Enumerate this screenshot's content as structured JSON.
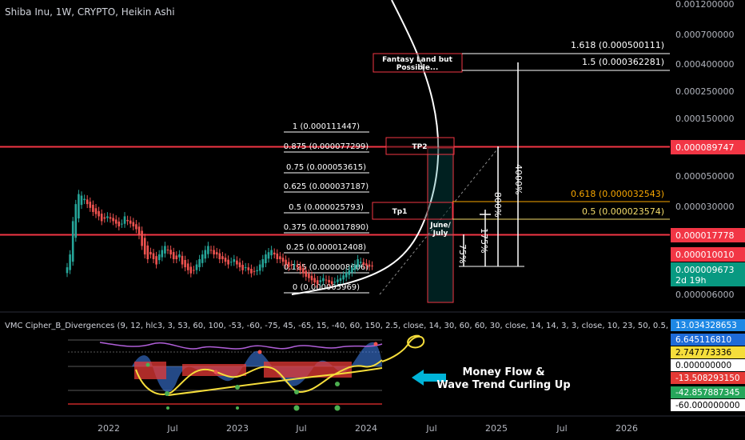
{
  "header": {
    "title": "Shiba Inu, 1W, CRYPTO, Heikin Ashi",
    "indicator": "VMC Cipher_B_Divergences (9, 12, hlc3, 3, 53, 60, 100, -53, -60, -75, 45, -65, 15, -40, 60, 150, 2.5, close, 14, 30, 60, 60, 30, close, 14, 14, 3, 3, close, 10, 23, 50, 0.5, -"
  },
  "colors": {
    "background": "#000000",
    "bull": "#26a69a",
    "bear": "#ef5350",
    "red_line": "#f23645",
    "fib_orange": "#f7a600",
    "fib_yellow": "#f5dd6b",
    "callout": "#00b4d8"
  },
  "annotations": {
    "fantasy_box": "Fantasy Land but\nPossible...",
    "tp2": "TP2",
    "tp1": "Tp1",
    "june_july": "June/\nJuly",
    "pct_4000": "4000%",
    "pct_800": "800%",
    "pct_175": "175%",
    "pct_75": "75%",
    "callout": "Money Flow &\nWave Trend Curling Up"
  },
  "chart_data": {
    "type": "candlestick",
    "title": "Shiba Inu, 1W, CRYPTO, Heikin Ashi",
    "y_scale": "log",
    "y_ticks": [
      "0.001200000",
      "0.000700000",
      "0.000400000",
      "0.000250000",
      "0.000150000",
      "0.000050000",
      "0.000030000",
      "0.000006000"
    ],
    "x_ticks": [
      "2022",
      "Jul",
      "2023",
      "Jul",
      "2024",
      "Jul",
      "2025",
      "Jul",
      "2026"
    ],
    "price_tags": [
      {
        "value": "0.000089747",
        "color": "#f23645"
      },
      {
        "value": "0.000017778",
        "color": "#f23645"
      },
      {
        "value": "0.000010010",
        "color": "#f23645"
      },
      {
        "value": "0.000009673",
        "sub": "2d 19h",
        "color": "#089981"
      }
    ],
    "fib_left": [
      "1 (0.000111447)",
      "0.875 (0.000077299)",
      "0.75 (0.000053615)",
      "0.625 (0.000037187)",
      "0.5 (0.000025793)",
      "0.375 (0.000017890)",
      "0.25 (0.000012408)",
      "0.125 (0.000008606)",
      "0 (0.000005969)"
    ],
    "fib_right_top": [
      "1.618 (0.000500111)",
      "1.5 (0.000362281)"
    ],
    "fib_right_mid": [
      {
        "label": "0.618 (0.000032543)",
        "color": "#f7a600"
      },
      {
        "label": "0.5 (0.000023574)",
        "color": "#f5dd6b"
      }
    ],
    "heikin_ashi_weekly_close": [
      9.5,
      12,
      22,
      30,
      36,
      35,
      33,
      30,
      28,
      26,
      25,
      24,
      22,
      23,
      24,
      23,
      22,
      21,
      20,
      21,
      24,
      22,
      21,
      20,
      19,
      17,
      14,
      12,
      11,
      12,
      11,
      10,
      12,
      13,
      14,
      13,
      12,
      11,
      11,
      12,
      10,
      9.5,
      9,
      8.5,
      9,
      10,
      11,
      12,
      13,
      14,
      13,
      12,
      12,
      11,
      11,
      10.5,
      10,
      10.5,
      11,
      10,
      9.5,
      9,
      9.5,
      9,
      8.5,
      8.8,
      9,
      10,
      11,
      12,
      12.5,
      13,
      12,
      11,
      11,
      10.5,
      10,
      9.5,
      9.8,
      10,
      9.5,
      9,
      8.5,
      8,
      7.8,
      7.5,
      7.2,
      7,
      7.5,
      7.8,
      7.5,
      7.2,
      7,
      7.3,
      7.6,
      7.8,
      8.2,
      8.6,
      9,
      9.5,
      10,
      11,
      10.5,
      10,
      9.8,
      9.6,
      9.7
    ]
  },
  "indicator_data": {
    "axis_labels": [
      {
        "value": "13.034328653",
        "bg": "#1e88e5",
        "fg": "#ffffff"
      },
      {
        "value": "6.645116810",
        "bg": "#1e6bd8",
        "fg": "#ffffff"
      },
      {
        "value": "2.747773336",
        "bg": "#f5dd3b",
        "fg": "#000000"
      },
      {
        "value": "0.000000000",
        "bg": "#ffffff",
        "fg": "#000000"
      },
      {
        "value": "-13.508293150",
        "bg": "#e53935",
        "fg": "#ffffff"
      },
      {
        "value": "-42.857887345",
        "bg": "#26a65b",
        "fg": "#ffffff"
      },
      {
        "value": "-60.000000000",
        "bg": "#ffffff",
        "fg": "#000000"
      }
    ]
  }
}
